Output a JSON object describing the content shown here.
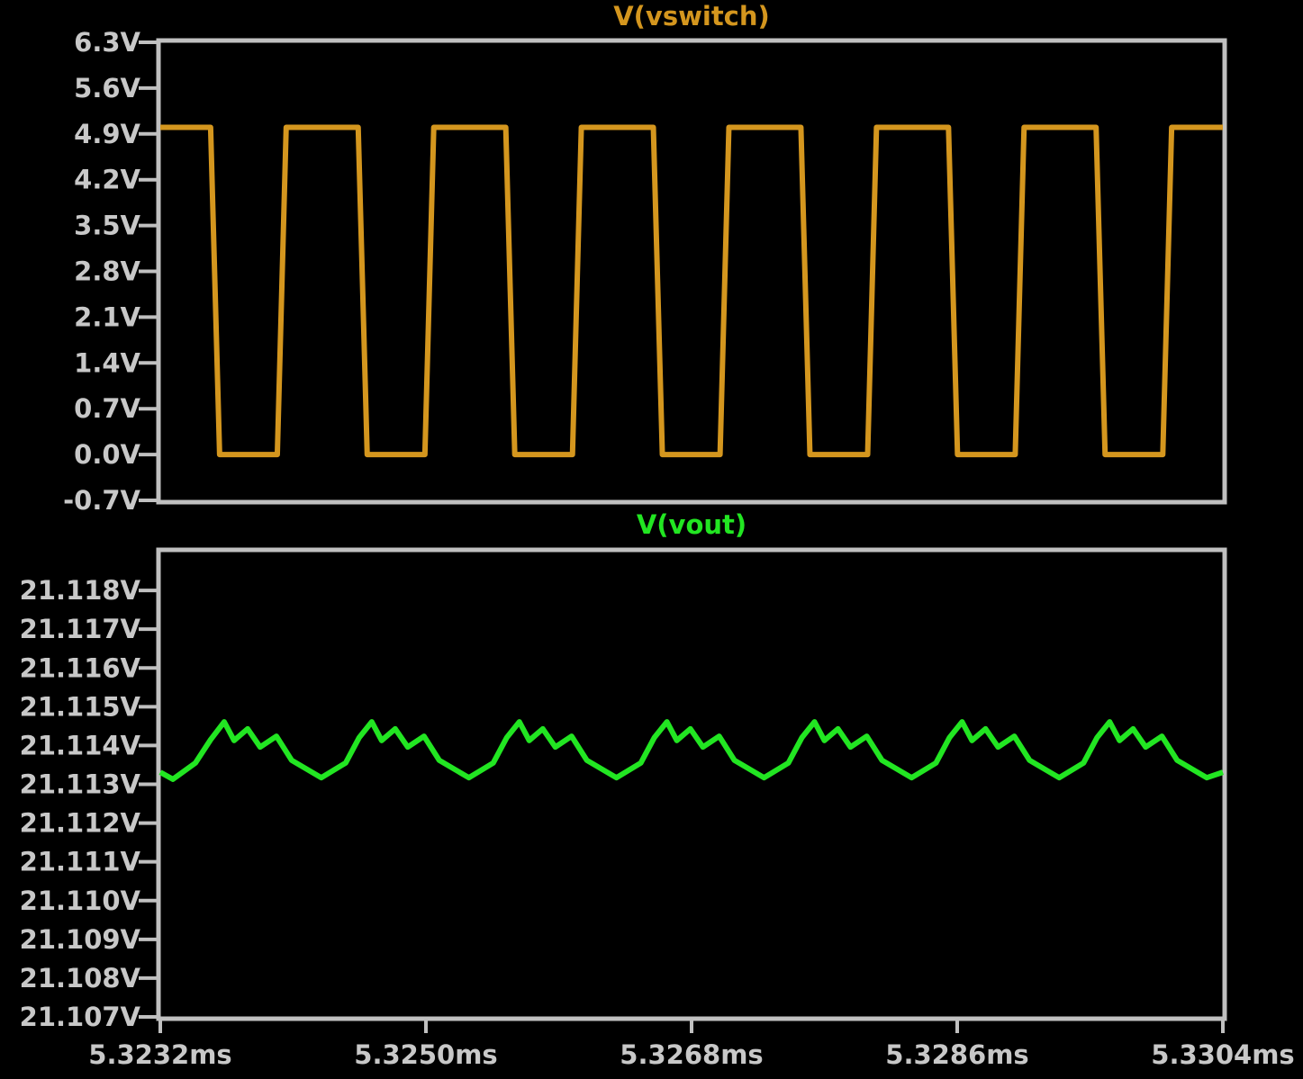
{
  "chart_data": [
    {
      "type": "line",
      "x": [
        5.3232,
        5.323541,
        5.323602,
        5.323993,
        5.324053,
        5.324541,
        5.324602,
        5.324993,
        5.325053,
        5.325541,
        5.325602,
        5.325993,
        5.326053,
        5.326541,
        5.326602,
        5.326993,
        5.327053,
        5.327541,
        5.327602,
        5.327993,
        5.328053,
        5.328541,
        5.328602,
        5.328993,
        5.329053,
        5.329541,
        5.329602,
        5.329993,
        5.330053,
        5.3304
      ],
      "series": [
        {
          "name": "V(vswitch)",
          "color": "#d4961e",
          "values": [
            5.0,
            5.0,
            0,
            0,
            5.0,
            5.0,
            0,
            0,
            5.0,
            5.0,
            0,
            0,
            5.0,
            5.0,
            0,
            0,
            5.0,
            5.0,
            0,
            0,
            5.0,
            5.0,
            0,
            0,
            5.0,
            5.0,
            0,
            0,
            5.0,
            5.0
          ]
        }
      ],
      "xlim": [
        5.3232,
        5.3304
      ],
      "ylim": [
        -0.7,
        6.3
      ],
      "yticks": [
        {
          "value": 6.3,
          "label": "6.3V"
        },
        {
          "value": 5.6,
          "label": "5.6V"
        },
        {
          "value": 4.9,
          "label": "4.9V"
        },
        {
          "value": 4.2,
          "label": "4.2V"
        },
        {
          "value": 3.5,
          "label": "3.5V"
        },
        {
          "value": 2.8,
          "label": "2.8V"
        },
        {
          "value": 2.1,
          "label": "2.1V"
        },
        {
          "value": 1.4,
          "label": "1.4V"
        },
        {
          "value": 0.7,
          "label": "0.7V"
        },
        {
          "value": 0,
          "label": "0.0V"
        },
        {
          "value": -0.7,
          "label": "-0.7V"
        }
      ]
    },
    {
      "type": "line",
      "x": [
        5.3232,
        5.323285,
        5.323438,
        5.323541,
        5.323633,
        5.3237,
        5.323792,
        5.323877,
        5.323987,
        5.32409,
        5.324291,
        5.324456,
        5.324547,
        5.324633,
        5.3247,
        5.324792,
        5.324877,
        5.324987,
        5.32509,
        5.325291,
        5.325456,
        5.325547,
        5.325633,
        5.3257,
        5.325792,
        5.325877,
        5.325987,
        5.32609,
        5.326291,
        5.326456,
        5.326547,
        5.326633,
        5.3267,
        5.326792,
        5.326877,
        5.326987,
        5.32709,
        5.327291,
        5.327456,
        5.327547,
        5.327633,
        5.3277,
        5.327792,
        5.327877,
        5.327987,
        5.32809,
        5.328291,
        5.328456,
        5.328547,
        5.328633,
        5.3287,
        5.328792,
        5.328877,
        5.328987,
        5.32909,
        5.329291,
        5.329456,
        5.329547,
        5.329633,
        5.3297,
        5.329792,
        5.329877,
        5.329987,
        5.33009,
        5.330291,
        5.3304
      ],
      "series": [
        {
          "name": "V(vout)",
          "color": "#22e622",
          "values": [
            21.11331,
            21.11313,
            21.11355,
            21.11415,
            21.11461,
            21.11413,
            21.11443,
            21.11396,
            21.11424,
            21.11362,
            21.11317,
            21.11355,
            21.1142,
            21.11461,
            21.11413,
            21.11443,
            21.11396,
            21.11424,
            21.11362,
            21.11317,
            21.11355,
            21.1142,
            21.11461,
            21.11413,
            21.11443,
            21.11396,
            21.11424,
            21.11362,
            21.11317,
            21.11355,
            21.1142,
            21.11461,
            21.11413,
            21.11443,
            21.11396,
            21.11424,
            21.11362,
            21.11317,
            21.11355,
            21.1142,
            21.11461,
            21.11413,
            21.11443,
            21.11396,
            21.11424,
            21.11362,
            21.11317,
            21.11355,
            21.1142,
            21.11461,
            21.11413,
            21.11443,
            21.11396,
            21.11424,
            21.11362,
            21.11317,
            21.11355,
            21.1142,
            21.11461,
            21.11413,
            21.11443,
            21.11396,
            21.11424,
            21.11362,
            21.11317,
            21.11331
          ]
        }
      ],
      "xlim": [
        5.3232,
        5.3304
      ],
      "xticks": [
        {
          "value": 5.3232,
          "label": "5.3232ms"
        },
        {
          "value": 5.325,
          "label": "5.3250ms"
        },
        {
          "value": 5.3268,
          "label": "5.3268ms"
        },
        {
          "value": 5.3286,
          "label": "5.3286ms"
        },
        {
          "value": 5.3304,
          "label": "5.3304ms"
        }
      ],
      "ylim": [
        21.107,
        21.119
      ],
      "yticks": [
        {
          "value": 21.118,
          "label": "21.118V"
        },
        {
          "value": 21.117,
          "label": "21.117V"
        },
        {
          "value": 21.116,
          "label": "21.116V"
        },
        {
          "value": 21.115,
          "label": "21.115V"
        },
        {
          "value": 21.114,
          "label": "21.114V"
        },
        {
          "value": 21.113,
          "label": "21.113V"
        },
        {
          "value": 21.112,
          "label": "21.112V"
        },
        {
          "value": 21.111,
          "label": "21.111V"
        },
        {
          "value": 21.11,
          "label": "21.110V"
        },
        {
          "value": 21.109,
          "label": "21.109V"
        },
        {
          "value": 21.108,
          "label": "21.108V"
        },
        {
          "value": 21.107,
          "label": "21.107V"
        }
      ]
    }
  ]
}
